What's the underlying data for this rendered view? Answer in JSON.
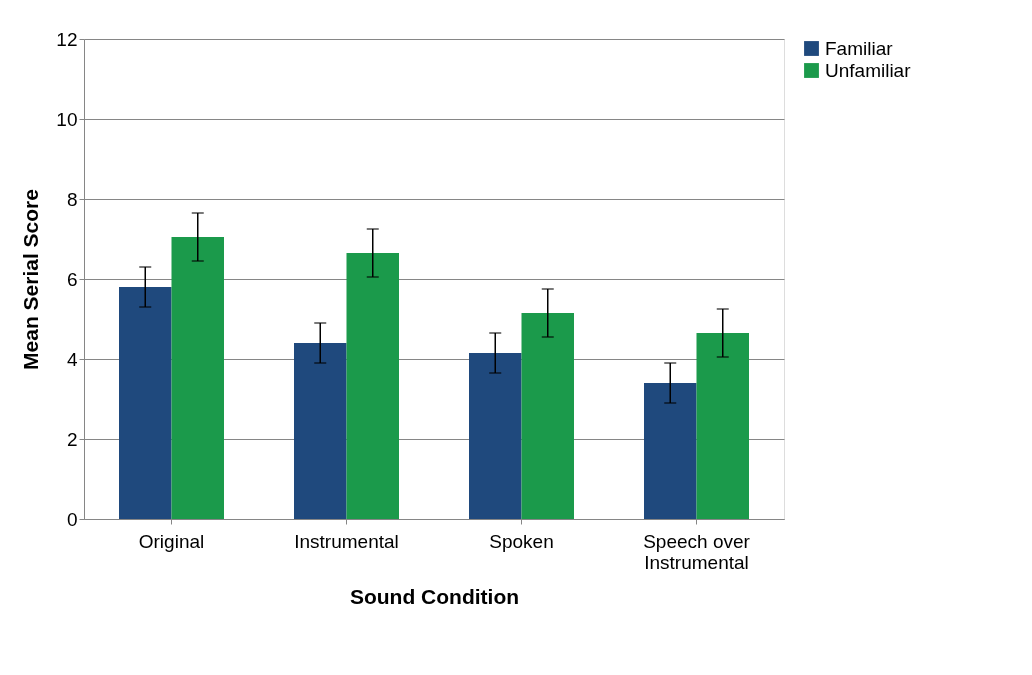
{
  "chart_data": {
    "type": "bar",
    "xlabel": "Sound Condition",
    "ylabel": "Mean Serial  Score",
    "categories": [
      "Original",
      "Instrumental",
      "Spoken",
      "Speech over\nInstrumental"
    ],
    "series": [
      {
        "name": "Familiar",
        "color": "#1f497d",
        "values": [
          5.8,
          4.4,
          4.15,
          3.4
        ],
        "errors": [
          0.5,
          0.5,
          0.5,
          0.5
        ]
      },
      {
        "name": "Unfamiliar",
        "color": "#1b9a4b",
        "values": [
          7.05,
          6.65,
          5.15,
          4.65
        ],
        "errors": [
          0.6,
          0.6,
          0.6,
          0.6
        ]
      }
    ],
    "ylim": [
      0,
      12
    ],
    "yticks": [
      0,
      2,
      4,
      6,
      8,
      10,
      12
    ],
    "grid": "y",
    "legend": "right"
  }
}
